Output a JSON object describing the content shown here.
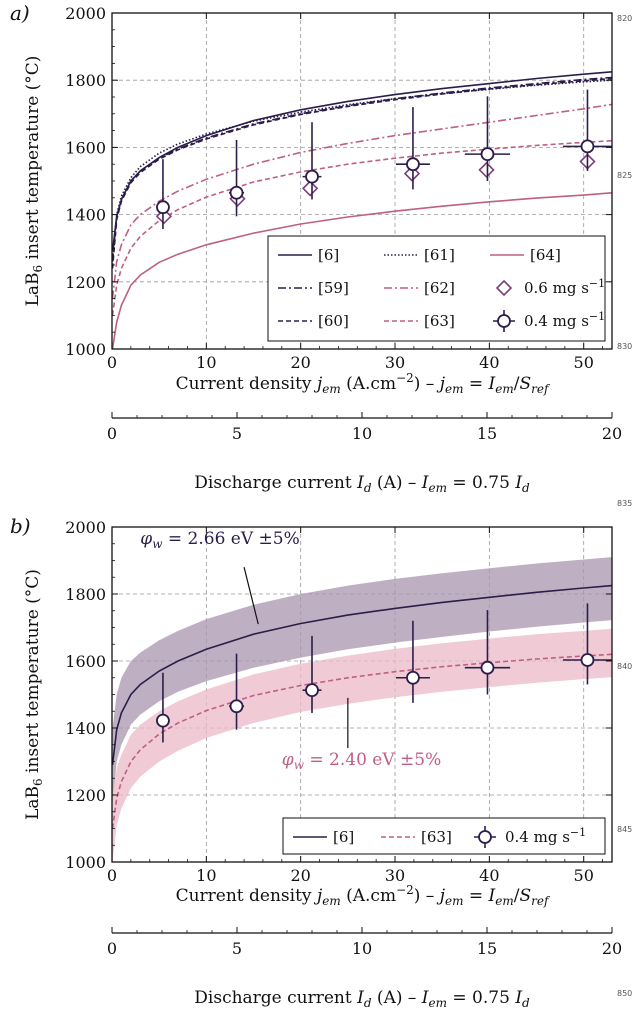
{
  "figure": {
    "margin_numbers": [
      "820",
      "825",
      "830",
      "835",
      "840",
      "845",
      "850"
    ]
  },
  "colors": {
    "dark": "#2b1d4a",
    "medium": "#7a3f78",
    "pink": "#bf5f85",
    "band_dark": "#a895ad",
    "band_pink": "#ebb8c6",
    "grid": "#9a9a9a"
  },
  "chart_data": [
    {
      "panel_label": "a)",
      "type": "line",
      "ylabel_parts": [
        "LaB",
        "6",
        " insert temperature (°C)"
      ],
      "xlabel_parts": [
        "Current density ",
        "j",
        "em",
        " (A.cm",
        "−2",
        ") – ",
        "j",
        "em",
        " = ",
        "I",
        "em",
        "/",
        "S",
        "ref"
      ],
      "xlim": [
        0,
        53
      ],
      "ylim": [
        1000,
        2000
      ],
      "xticks": [
        0,
        10,
        20,
        30,
        40,
        50
      ],
      "yticks": [
        1000,
        1200,
        1400,
        1600,
        1800,
        2000
      ],
      "secondary_x": {
        "label_parts": [
          "Discharge current ",
          "I",
          "d",
          " (A) – ",
          "I",
          "em",
          " = 0.75 ",
          "I",
          "d"
        ],
        "ticks": [
          0,
          5,
          10,
          15,
          20
        ],
        "lim": [
          0,
          20
        ]
      },
      "grid": true,
      "series": [
        {
          "name": "[6]",
          "style": "solid",
          "color": "#2b1d4a",
          "x": [
            0.05,
            0.5,
            1,
            2,
            3,
            5,
            7,
            10,
            15,
            20,
            25,
            30,
            35,
            40,
            45,
            50,
            53
          ],
          "y": [
            1290,
            1395,
            1445,
            1500,
            1530,
            1570,
            1600,
            1635,
            1680,
            1712,
            1737,
            1757,
            1775,
            1790,
            1805,
            1818,
            1825
          ]
        },
        {
          "name": "[61]",
          "style": "dotted",
          "color": "#2b1d4a",
          "x": [
            0.05,
            0.5,
            1,
            2,
            3,
            5,
            7,
            10,
            15,
            20,
            25,
            30,
            35,
            40,
            45,
            50,
            53
          ],
          "y": [
            1270,
            1400,
            1455,
            1510,
            1543,
            1583,
            1610,
            1640,
            1678,
            1705,
            1727,
            1745,
            1760,
            1773,
            1785,
            1795,
            1800
          ]
        },
        {
          "name": "[64]",
          "style": "solid",
          "color": "#bf5f85",
          "x": [
            0.05,
            0.5,
            1,
            2,
            3,
            5,
            7,
            10,
            15,
            20,
            25,
            30,
            35,
            40,
            45,
            50,
            53
          ],
          "y": [
            1000,
            1080,
            1130,
            1190,
            1220,
            1258,
            1282,
            1310,
            1345,
            1372,
            1393,
            1410,
            1425,
            1438,
            1449,
            1458,
            1465
          ]
        },
        {
          "name": "[59]",
          "style": "dashdot",
          "color": "#2b1d4a",
          "x": [
            0.05,
            0.5,
            1,
            2,
            3,
            5,
            7,
            10,
            15,
            20,
            25,
            30,
            35,
            40,
            45,
            50,
            53
          ],
          "y": [
            1260,
            1390,
            1445,
            1500,
            1530,
            1568,
            1595,
            1628,
            1670,
            1700,
            1724,
            1745,
            1762,
            1777,
            1790,
            1802,
            1808
          ]
        },
        {
          "name": "[62]",
          "style": "dashdot",
          "color": "#bf5f85",
          "x": [
            0.05,
            0.5,
            1,
            2,
            3,
            5,
            7,
            10,
            15,
            20,
            25,
            30,
            35,
            40,
            45,
            50,
            53
          ],
          "y": [
            1150,
            1260,
            1310,
            1370,
            1400,
            1440,
            1470,
            1505,
            1550,
            1585,
            1612,
            1635,
            1655,
            1675,
            1695,
            1715,
            1728
          ]
        },
        {
          "name": "[60]",
          "style": "dashed",
          "color": "#2b1d4a",
          "x": [
            0.05,
            0.5,
            1,
            2,
            3,
            5,
            7,
            10,
            15,
            20,
            25,
            30,
            35,
            40,
            45,
            50,
            53
          ],
          "y": [
            1240,
            1385,
            1440,
            1495,
            1525,
            1565,
            1593,
            1625,
            1667,
            1698,
            1722,
            1742,
            1759,
            1774,
            1787,
            1798,
            1805
          ]
        },
        {
          "name": "[63]",
          "style": "dashed",
          "color": "#bf5f85",
          "x": [
            0.05,
            0.5,
            1,
            2,
            3,
            5,
            7,
            10,
            15,
            20,
            25,
            30,
            35,
            40,
            45,
            50,
            53
          ],
          "y": [
            1100,
            1190,
            1240,
            1300,
            1335,
            1382,
            1415,
            1452,
            1497,
            1527,
            1550,
            1568,
            1583,
            1595,
            1606,
            1615,
            1620
          ]
        }
      ],
      "markers": [
        {
          "name": "0.6 mg s",
          "name_sup": "−1",
          "shape": "diamond",
          "color": "#7a3f78",
          "x": [
            5.5,
            13.3,
            21.0,
            31.8,
            39.7,
            50.4
          ],
          "y": [
            1395,
            1447,
            1478,
            1522,
            1533,
            1558
          ]
        },
        {
          "name": "0.4 mg s",
          "name_sup": "−1",
          "shape": "circle",
          "color": "#2b1d4a",
          "x": [
            5.4,
            13.2,
            21.2,
            31.9,
            39.8,
            50.4
          ],
          "y": [
            1422,
            1465,
            1513,
            1550,
            1580,
            1603
          ],
          "yerr_low": [
            1357,
            1395,
            1445,
            1475,
            1500,
            1530
          ],
          "yerr_high": [
            1565,
            1622,
            1675,
            1720,
            1752,
            1772
          ],
          "xerr_low": [
            5.4,
            12.4,
            20.2,
            30.1,
            37.4,
            47.8
          ],
          "xerr_high": [
            5.4,
            14.0,
            22.2,
            33.7,
            42.2,
            53
          ]
        }
      ],
      "legend": {
        "placement": "lower-right",
        "rows": [
          [
            "[6]",
            "[61]",
            "[64]"
          ],
          [
            "[59]",
            "[62]",
            "0.6 mg s"
          ],
          [
            "[60]",
            "[63]",
            "0.4 mg s"
          ]
        ]
      }
    },
    {
      "panel_label": "b)",
      "type": "line",
      "ylabel_parts": [
        "LaB",
        "6",
        " insert temperature (°C)"
      ],
      "xlabel_parts": [
        "Current density ",
        "j",
        "em",
        " (A.cm",
        "−2",
        ") – ",
        "j",
        "em",
        " = ",
        "I",
        "em",
        "/",
        "S",
        "ref"
      ],
      "xlim": [
        0,
        53
      ],
      "ylim": [
        1000,
        2000
      ],
      "xticks": [
        0,
        10,
        20,
        30,
        40,
        50
      ],
      "yticks": [
        1000,
        1200,
        1400,
        1600,
        1800,
        2000
      ],
      "secondary_x": {
        "label_parts": [
          "Discharge current ",
          "I",
          "d",
          " (A) – ",
          "I",
          "em",
          " = 0.75 ",
          "I",
          "d"
        ],
        "ticks": [
          0,
          5,
          10,
          15,
          20
        ],
        "lim": [
          0,
          20
        ]
      },
      "grid": true,
      "bands": [
        {
          "color": "#a895ad",
          "x": [
            0.05,
            0.5,
            1,
            2,
            3,
            5,
            7,
            10,
            15,
            20,
            25,
            30,
            35,
            40,
            45,
            50,
            53
          ],
          "y_low": [
            1170,
            1300,
            1350,
            1410,
            1440,
            1480,
            1508,
            1540,
            1580,
            1610,
            1635,
            1655,
            1672,
            1688,
            1702,
            1715,
            1722
          ],
          "y_high": [
            1400,
            1500,
            1550,
            1600,
            1625,
            1662,
            1690,
            1725,
            1768,
            1800,
            1825,
            1845,
            1862,
            1877,
            1891,
            1903,
            1910
          ]
        },
        {
          "color": "#ebb8c6",
          "x": [
            0.05,
            0.5,
            1,
            2,
            3,
            5,
            7,
            10,
            15,
            20,
            25,
            30,
            35,
            40,
            45,
            50,
            53
          ],
          "y_low": [
            1000,
            1110,
            1160,
            1220,
            1255,
            1300,
            1332,
            1370,
            1415,
            1448,
            1472,
            1492,
            1508,
            1522,
            1535,
            1546,
            1552
          ],
          "y_high": [
            1200,
            1280,
            1320,
            1380,
            1410,
            1450,
            1480,
            1515,
            1560,
            1592,
            1616,
            1636,
            1653,
            1667,
            1680,
            1690,
            1696
          ]
        }
      ],
      "series": [
        {
          "name": "[6]",
          "style": "solid",
          "color": "#2b1d4a",
          "x": [
            0.05,
            0.5,
            1,
            2,
            3,
            5,
            7,
            10,
            15,
            20,
            25,
            30,
            35,
            40,
            45,
            50,
            53
          ],
          "y": [
            1290,
            1395,
            1445,
            1500,
            1530,
            1570,
            1600,
            1635,
            1680,
            1712,
            1737,
            1757,
            1775,
            1790,
            1805,
            1818,
            1825
          ]
        },
        {
          "name": "[63]",
          "style": "dashed",
          "color": "#bf5f85",
          "x": [
            0.05,
            0.5,
            1,
            2,
            3,
            5,
            7,
            10,
            15,
            20,
            25,
            30,
            35,
            40,
            45,
            50,
            53
          ],
          "y": [
            1100,
            1190,
            1240,
            1300,
            1335,
            1382,
            1415,
            1452,
            1497,
            1527,
            1550,
            1568,
            1583,
            1595,
            1606,
            1615,
            1620
          ]
        }
      ],
      "markers": [
        {
          "name": "0.4 mg s",
          "name_sup": "−1",
          "shape": "circle",
          "color": "#2b1d4a",
          "x": [
            5.4,
            13.2,
            21.2,
            31.9,
            39.8,
            50.4
          ],
          "y": [
            1422,
            1465,
            1513,
            1550,
            1580,
            1603
          ],
          "yerr_low": [
            1357,
            1395,
            1445,
            1475,
            1500,
            1530
          ],
          "yerr_high": [
            1565,
            1622,
            1675,
            1720,
            1752,
            1772
          ],
          "xerr_low": [
            5.4,
            12.4,
            20.2,
            30.1,
            37.4,
            47.8
          ],
          "xerr_high": [
            5.4,
            14.0,
            22.2,
            33.7,
            42.2,
            53
          ]
        }
      ],
      "annotations": [
        {
          "text_sym": "φ",
          "text_sub": "w",
          "text_rest": " = 2.66 eV ±5%",
          "color": "#2b1d4a",
          "label_x": 3,
          "label_y": 1950,
          "arrow_from": [
            14,
            1880
          ],
          "arrow_to": [
            15.5,
            1710
          ]
        },
        {
          "text_sym": "φ",
          "text_sub": "w",
          "text_rest": " = 2.40 eV ±5%",
          "color": "#bf5f85",
          "label_x": 18,
          "label_y": 1290,
          "arrow_from": [
            25,
            1340
          ],
          "arrow_to": [
            25,
            1490
          ]
        }
      ],
      "legend": {
        "placement": "lower-right",
        "rows": [
          [
            "[6]",
            "[63]",
            "0.4 mg s"
          ]
        ]
      }
    }
  ]
}
